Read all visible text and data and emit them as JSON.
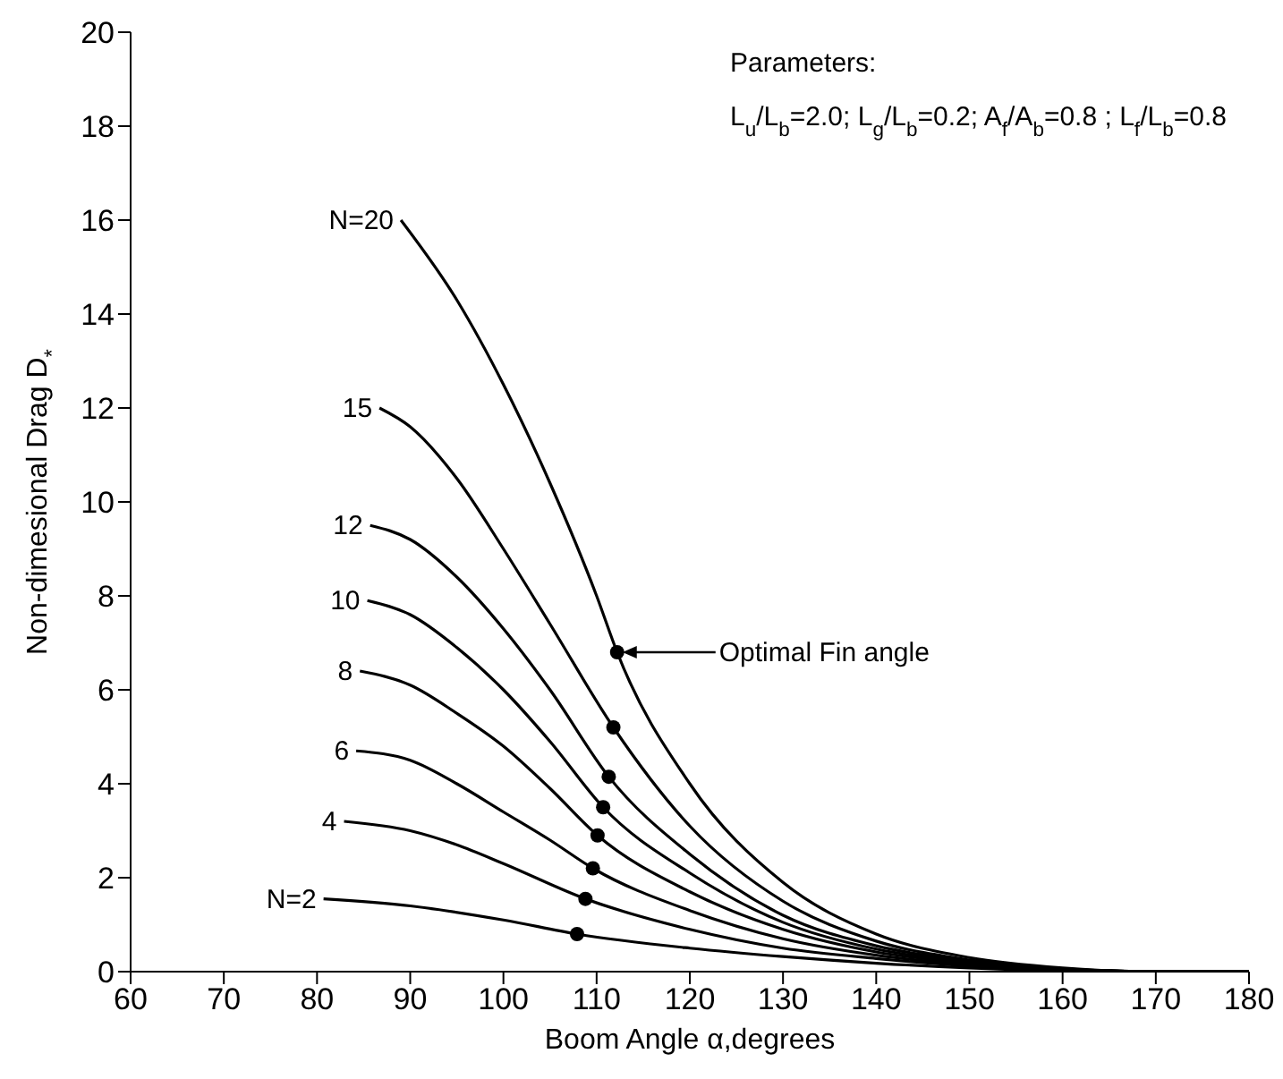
{
  "chart_data": {
    "type": "line",
    "xlabel": "Boom Angle α,degrees",
    "ylabel": "Non-dimesional Drag D$_{*}$",
    "xlim": [
      60,
      180
    ],
    "xticks": [
      60,
      70,
      80,
      90,
      100,
      110,
      120,
      130,
      140,
      150,
      160,
      170,
      180
    ],
    "ylim": [
      0,
      20
    ],
    "yticks": [
      0,
      2,
      4,
      6,
      8,
      10,
      12,
      14,
      16,
      18,
      20
    ],
    "grid": false,
    "legend": false,
    "marker": "none",
    "line_style": "solid",
    "annotations": [
      "Parameters:",
      "L$_{u}$/L$_{b}$=2.0; L$_{g}$/L$_{b}$=0.2; A$_{f}$/A$_{b}$=0.8 ; L$_{f}$/L$_{b}$=0.8",
      "Optimal Fin angle"
    ],
    "series": [
      {
        "name": "N=20",
        "color": "#000000",
        "x": [
          89,
          95,
          100,
          105,
          110,
          112.2,
          120,
          130,
          140,
          150,
          160,
          170,
          180
        ],
        "values": [
          16,
          14.3,
          12.5,
          10.4,
          8.0,
          6.8,
          4.0,
          1.9,
          0.8,
          0.3,
          0.08,
          0,
          0
        ]
      },
      {
        "name": "15",
        "color": "#000000",
        "x": [
          86.7,
          90,
          95,
          100,
          105,
          111.8,
          120,
          130,
          140,
          150,
          160,
          170,
          180
        ],
        "values": [
          12,
          11.6,
          10.5,
          9.0,
          7.4,
          5.2,
          3.1,
          1.5,
          0.65,
          0.25,
          0.06,
          0,
          0
        ]
      },
      {
        "name": "12",
        "color": "#000000",
        "x": [
          85.7,
          90,
          95,
          100,
          105,
          111.3,
          120,
          130,
          140,
          150,
          160,
          170,
          180
        ],
        "values": [
          9.5,
          9.2,
          8.4,
          7.3,
          6.0,
          4.15,
          2.5,
          1.2,
          0.55,
          0.22,
          0.05,
          0,
          0
        ]
      },
      {
        "name": "10",
        "color": "#000000",
        "x": [
          85.4,
          90,
          95,
          100,
          105,
          110.7,
          120,
          130,
          140,
          150,
          160,
          170,
          180
        ],
        "values": [
          7.9,
          7.6,
          6.9,
          6.0,
          4.9,
          3.5,
          2.1,
          1.05,
          0.48,
          0.2,
          0.05,
          0,
          0
        ]
      },
      {
        "name": "8",
        "color": "#000000",
        "x": [
          84.6,
          90,
          95,
          100,
          105,
          110.1,
          120,
          130,
          140,
          150,
          160,
          170,
          180
        ],
        "values": [
          6.4,
          6.1,
          5.5,
          4.8,
          3.9,
          2.9,
          1.7,
          0.9,
          0.42,
          0.18,
          0.04,
          0,
          0
        ]
      },
      {
        "name": "6",
        "color": "#000000",
        "x": [
          84.2,
          90,
          95,
          100,
          105,
          109.6,
          120,
          130,
          140,
          150,
          160,
          170,
          180
        ],
        "values": [
          4.7,
          4.5,
          4.0,
          3.4,
          2.8,
          2.2,
          1.3,
          0.7,
          0.35,
          0.15,
          0.04,
          0,
          0
        ]
      },
      {
        "name": "4",
        "color": "#000000",
        "x": [
          82.9,
          90,
          95,
          100,
          108.8,
          120,
          130,
          140,
          150,
          160,
          170,
          180
        ],
        "values": [
          3.2,
          3.0,
          2.7,
          2.3,
          1.55,
          0.9,
          0.5,
          0.28,
          0.12,
          0.03,
          0,
          0
        ]
      },
      {
        "name": "N=2",
        "color": "#000000",
        "x": [
          80.7,
          90,
          100,
          107.9,
          120,
          130,
          140,
          150,
          160,
          170,
          180
        ],
        "values": [
          1.55,
          1.4,
          1.1,
          0.8,
          0.5,
          0.32,
          0.18,
          0.08,
          0.02,
          0,
          0
        ]
      },
      {
        "type": "scatter",
        "marker": "circle",
        "color": "#000000",
        "x": [
          112.2,
          111.8,
          111.3,
          110.7,
          110.1,
          109.6,
          108.8,
          107.9
        ],
        "values": [
          6.8,
          5.2,
          4.15,
          3.5,
          2.9,
          2.2,
          1.55,
          0.8
        ]
      }
    ]
  }
}
